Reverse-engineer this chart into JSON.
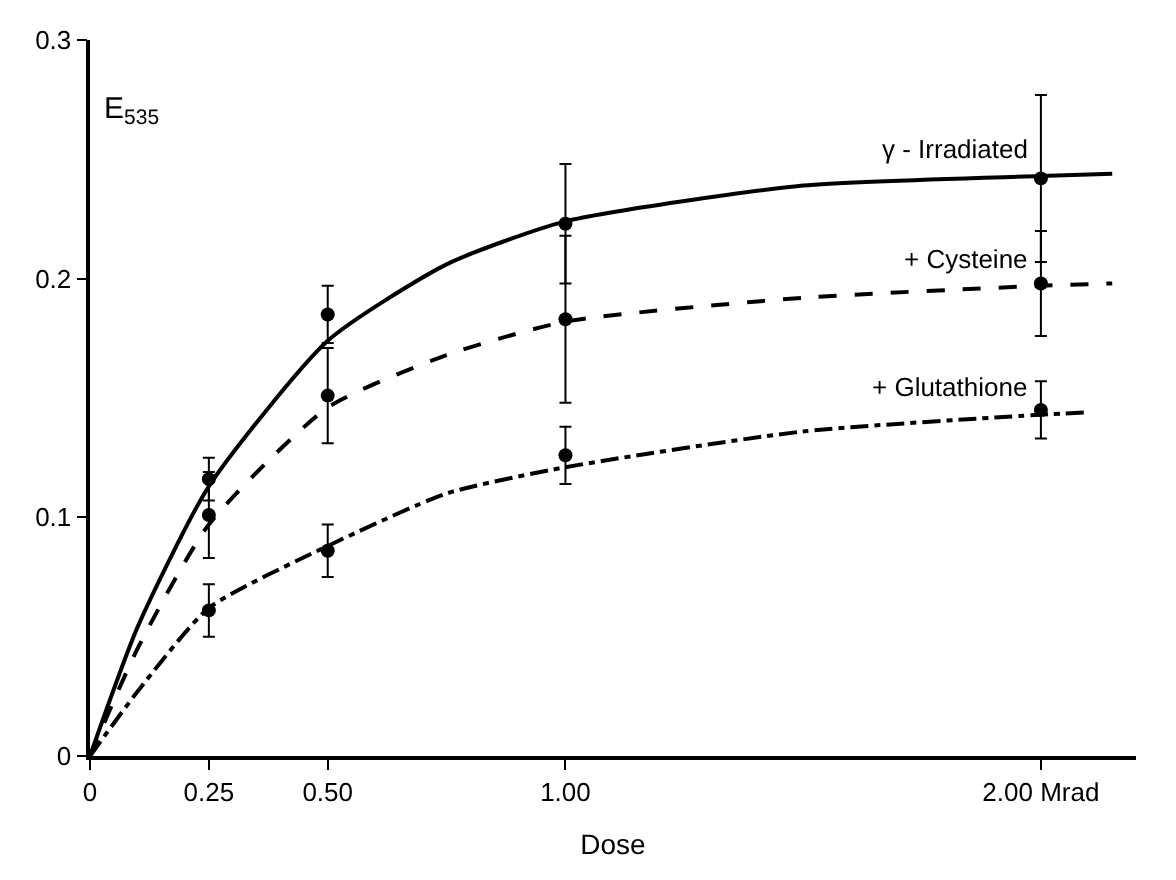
{
  "chart_data": {
    "type": "line",
    "xlabel": "Dose",
    "ylabel": "E$_{535}$",
    "xlim": [
      0,
      2.2
    ],
    "ylim": [
      0,
      0.3
    ],
    "xticks": [
      0,
      {
        "value": 0.25,
        "label": "0.25"
      },
      {
        "value": 0.5,
        "label": "0.50"
      },
      {
        "value": 1,
        "label": "1.00"
      },
      {
        "value": 2,
        "label": "2.00 Mrad"
      }
    ],
    "yticks": [
      0,
      0.1,
      0.2,
      0.3
    ],
    "grid": false,
    "legend": false,
    "series": [
      {
        "name": "γ - Irradiated",
        "line_style": "solid",
        "color": "#000000",
        "x": [
          0,
          0.1,
          0.25,
          0.5,
          0.75,
          1,
          1.5,
          2,
          2.15
        ],
        "values": [
          0,
          0.054,
          0.113,
          0.174,
          0.206,
          0.224,
          0.239,
          0.243,
          0.244
        ]
      },
      {
        "name": "+ Cysteine",
        "line_style": "dashed",
        "color": "#000000",
        "x": [
          0,
          0.1,
          0.25,
          0.5,
          0.75,
          1,
          1.5,
          2,
          2.15
        ],
        "values": [
          0,
          0.045,
          0.097,
          0.146,
          0.168,
          0.182,
          0.192,
          0.197,
          0.198
        ]
      },
      {
        "name": "+ Glutathione",
        "line_style": "dashdot",
        "color": "#000000",
        "x": [
          0,
          0.1,
          0.25,
          0.5,
          0.75,
          1,
          1.5,
          2,
          2.1
        ],
        "values": [
          0,
          0.027,
          0.062,
          0.088,
          0.11,
          0.121,
          0.136,
          0.143,
          0.144
        ]
      },
      {
        "type": "scatter",
        "marker": "circle",
        "color": "#000000",
        "x": [
          0.25,
          0.5,
          1,
          2
        ],
        "values": [
          0.116,
          0.185,
          0.223,
          0.242
        ],
        "errors": [
          0.009,
          0.012,
          0.025,
          0.035
        ]
      },
      {
        "type": "scatter",
        "marker": "circle",
        "color": "#000000",
        "x": [
          0.25,
          0.5,
          1,
          2
        ],
        "values": [
          0.101,
          0.151,
          0.183,
          0.198
        ],
        "errors": [
          0.018,
          0.02,
          0.035,
          0.022
        ]
      },
      {
        "type": "scatter",
        "marker": "circle",
        "color": "#000000",
        "x": [
          0.25,
          0.5,
          1,
          2
        ],
        "values": [
          0.061,
          0.086,
          0.126,
          0.145
        ],
        "errors": [
          0.011,
          0.011,
          0.012,
          0.012
        ]
      }
    ]
  }
}
